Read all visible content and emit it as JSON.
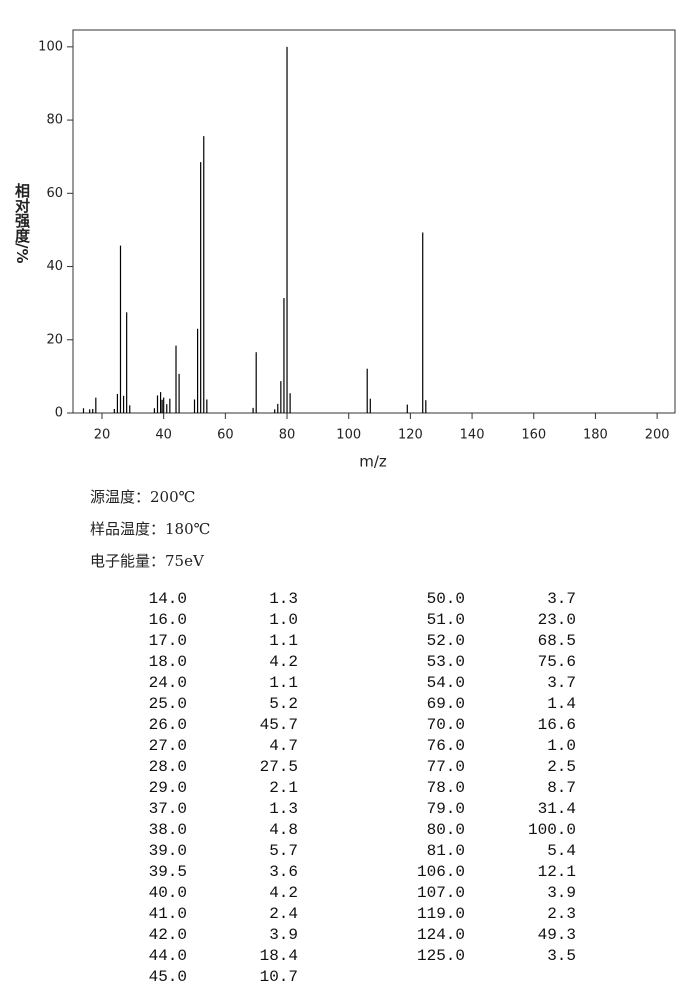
{
  "chart_data": {
    "type": "bar",
    "x_label": "m/z",
    "y_label": "相对强度/%",
    "x": [
      14,
      16,
      17,
      18,
      24,
      25,
      26,
      27,
      28,
      29,
      37,
      38,
      39,
      39.5,
      40,
      41,
      42,
      44,
      45,
      50,
      51,
      52,
      53,
      54,
      69,
      70,
      76,
      77,
      78,
      79,
      80,
      81,
      106,
      107,
      119,
      124,
      125
    ],
    "values": [
      1.3,
      1.0,
      1.1,
      4.2,
      1.1,
      5.2,
      45.7,
      4.7,
      27.5,
      2.1,
      1.3,
      4.8,
      5.7,
      3.6,
      4.2,
      2.4,
      3.9,
      18.4,
      10.7,
      3.7,
      23.0,
      68.5,
      75.6,
      3.7,
      1.4,
      16.6,
      1.0,
      2.5,
      8.7,
      31.4,
      100.0,
      5.4,
      12.1,
      3.9,
      2.3,
      49.3,
      3.5
    ],
    "color": "#000000",
    "xlim": [
      10.6,
      205.8
    ],
    "ylim": [
      0,
      104.6
    ],
    "xticks": [
      20,
      40,
      60,
      80,
      100,
      120,
      140,
      160,
      180,
      200
    ],
    "yticks": [
      0,
      20,
      40,
      60,
      80,
      100
    ]
  },
  "info": [
    "源温度：200℃",
    "样品温度：180℃",
    "电子能量：75eV"
  ],
  "table": {
    "rows": [
      [
        "14.0",
        "1.3"
      ],
      [
        "16.0",
        "1.0"
      ],
      [
        "17.0",
        "1.1"
      ],
      [
        "18.0",
        "4.2"
      ],
      [
        "24.0",
        "1.1"
      ],
      [
        "25.0",
        "5.2"
      ],
      [
        "26.0",
        "45.7"
      ],
      [
        "27.0",
        "4.7"
      ],
      [
        "28.0",
        "27.5"
      ],
      [
        "29.0",
        "2.1"
      ],
      [
        "37.0",
        "1.3"
      ],
      [
        "38.0",
        "4.8"
      ],
      [
        "39.0",
        "5.7"
      ],
      [
        "39.5",
        "3.6"
      ],
      [
        "40.0",
        "4.2"
      ],
      [
        "41.0",
        "2.4"
      ],
      [
        "42.0",
        "3.9"
      ],
      [
        "44.0",
        "18.4"
      ],
      [
        "45.0",
        "10.7"
      ],
      [
        "50.0",
        "3.7"
      ],
      [
        "51.0",
        "23.0"
      ],
      [
        "52.0",
        "68.5"
      ],
      [
        "53.0",
        "75.6"
      ],
      [
        "54.0",
        "3.7"
      ],
      [
        "69.0",
        "1.4"
      ],
      [
        "70.0",
        "16.6"
      ],
      [
        "76.0",
        "1.0"
      ],
      [
        "77.0",
        "2.5"
      ],
      [
        "78.0",
        "8.7"
      ],
      [
        "79.0",
        "31.4"
      ],
      [
        "80.0",
        "100.0"
      ],
      [
        "81.0",
        "5.4"
      ],
      [
        "106.0",
        "12.1"
      ],
      [
        "107.0",
        "3.9"
      ],
      [
        "119.0",
        "2.3"
      ],
      [
        "124.0",
        "49.3"
      ],
      [
        "125.0",
        "3.5"
      ]
    ]
  }
}
